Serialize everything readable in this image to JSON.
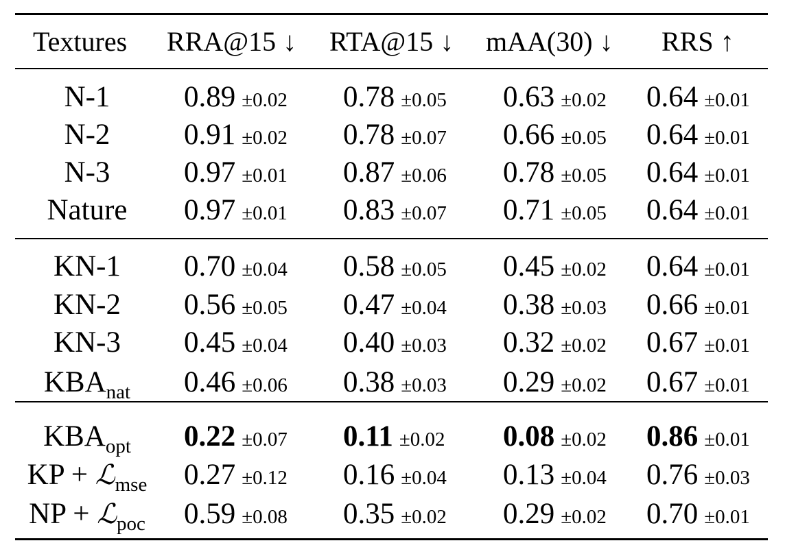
{
  "table": {
    "headers": [
      "Textures",
      "RRA@15 ↓",
      "RTA@15 ↓",
      "mAA(30) ↓",
      "RRS ↑"
    ],
    "groups": [
      {
        "rows": [
          {
            "label": "N-1",
            "cells": [
              {
                "mean": "0.89",
                "std": "±0.02",
                "bold": false
              },
              {
                "mean": "0.78",
                "std": "±0.05",
                "bold": false
              },
              {
                "mean": "0.63",
                "std": "±0.02",
                "bold": false
              },
              {
                "mean": "0.64",
                "std": "±0.01",
                "bold": false
              }
            ]
          },
          {
            "label": "N-2",
            "cells": [
              {
                "mean": "0.91",
                "std": "±0.02",
                "bold": false
              },
              {
                "mean": "0.78",
                "std": "±0.07",
                "bold": false
              },
              {
                "mean": "0.66",
                "std": "±0.05",
                "bold": false
              },
              {
                "mean": "0.64",
                "std": "±0.01",
                "bold": false
              }
            ]
          },
          {
            "label": "N-3",
            "cells": [
              {
                "mean": "0.97",
                "std": "±0.01",
                "bold": false
              },
              {
                "mean": "0.87",
                "std": "±0.06",
                "bold": false
              },
              {
                "mean": "0.78",
                "std": "±0.05",
                "bold": false
              },
              {
                "mean": "0.64",
                "std": "±0.01",
                "bold": false
              }
            ]
          },
          {
            "label": "Nature",
            "cells": [
              {
                "mean": "0.97",
                "std": "±0.01",
                "bold": false
              },
              {
                "mean": "0.83",
                "std": "±0.07",
                "bold": false
              },
              {
                "mean": "0.71",
                "std": "±0.05",
                "bold": false
              },
              {
                "mean": "0.64",
                "std": "±0.01",
                "bold": false
              }
            ]
          }
        ]
      },
      {
        "rows": [
          {
            "label": "KN-1",
            "cells": [
              {
                "mean": "0.70",
                "std": "±0.04",
                "bold": false
              },
              {
                "mean": "0.58",
                "std": "±0.05",
                "bold": false
              },
              {
                "mean": "0.45",
                "std": "±0.02",
                "bold": false
              },
              {
                "mean": "0.64",
                "std": "±0.01",
                "bold": false
              }
            ]
          },
          {
            "label": "KN-2",
            "cells": [
              {
                "mean": "0.56",
                "std": "±0.05",
                "bold": false
              },
              {
                "mean": "0.47",
                "std": "±0.04",
                "bold": false
              },
              {
                "mean": "0.38",
                "std": "±0.03",
                "bold": false
              },
              {
                "mean": "0.66",
                "std": "±0.01",
                "bold": false
              }
            ]
          },
          {
            "label": "KN-3",
            "cells": [
              {
                "mean": "0.45",
                "std": "±0.04",
                "bold": false
              },
              {
                "mean": "0.40",
                "std": "±0.03",
                "bold": false
              },
              {
                "mean": "0.32",
                "std": "±0.02",
                "bold": false
              },
              {
                "mean": "0.67",
                "std": "±0.01",
                "bold": false
              }
            ]
          },
          {
            "label": "KBA",
            "sub": "nat",
            "cells": [
              {
                "mean": "0.46",
                "std": "±0.06",
                "bold": false
              },
              {
                "mean": "0.38",
                "std": "±0.03",
                "bold": false
              },
              {
                "mean": "0.29",
                "std": "±0.02",
                "bold": false
              },
              {
                "mean": "0.67",
                "std": "±0.01",
                "bold": false
              }
            ]
          }
        ]
      },
      {
        "rows": [
          {
            "label": "KBA",
            "sub": "opt",
            "cells": [
              {
                "mean": "0.22",
                "std": "±0.07",
                "bold": true
              },
              {
                "mean": "0.11",
                "std": "±0.02",
                "bold": true
              },
              {
                "mean": "0.08",
                "std": "±0.02",
                "bold": true
              },
              {
                "mean": "0.86",
                "std": "±0.01",
                "bold": true
              }
            ]
          },
          {
            "label": "KP + ",
            "script": "ℒ",
            "sub": "mse",
            "cells": [
              {
                "mean": "0.27",
                "std": "±0.12",
                "bold": false
              },
              {
                "mean": "0.16",
                "std": "±0.04",
                "bold": false
              },
              {
                "mean": "0.13",
                "std": "±0.04",
                "bold": false
              },
              {
                "mean": "0.76",
                "std": "±0.03",
                "bold": false
              }
            ]
          },
          {
            "label": "NP + ",
            "script": "ℒ",
            "sub": "poc",
            "cells": [
              {
                "mean": "0.59",
                "std": "±0.08",
                "bold": false
              },
              {
                "mean": "0.35",
                "std": "±0.02",
                "bold": false
              },
              {
                "mean": "0.29",
                "std": "±0.02",
                "bold": false
              },
              {
                "mean": "0.70",
                "std": "±0.01",
                "bold": false
              }
            ]
          }
        ]
      }
    ]
  }
}
